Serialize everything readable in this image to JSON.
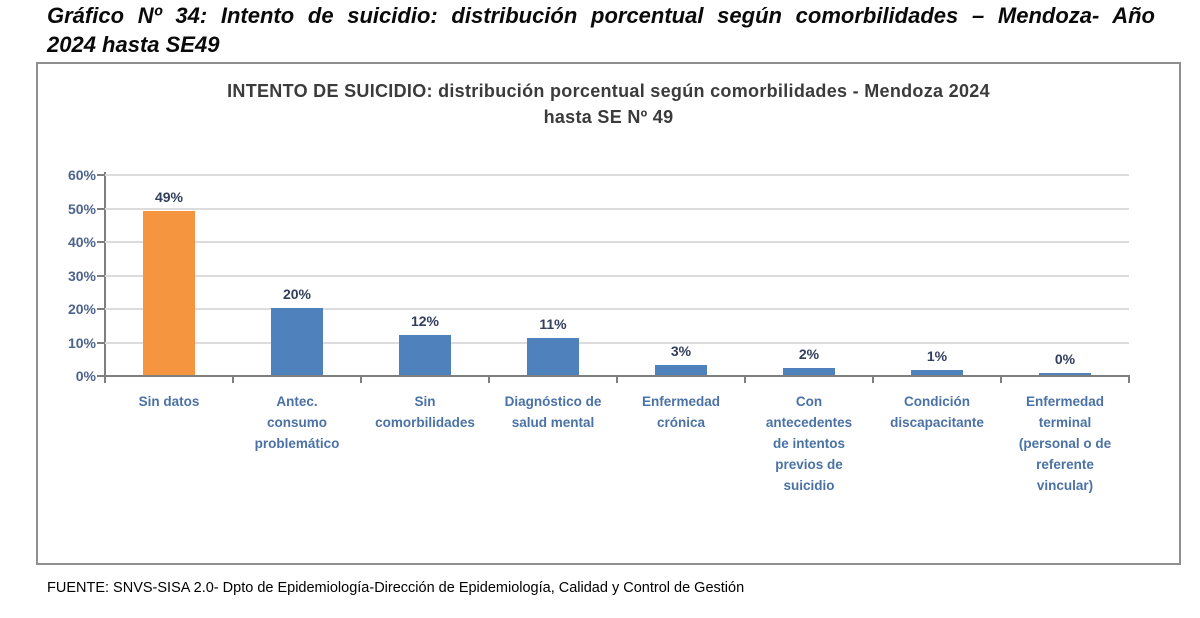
{
  "header": {
    "line1": "Gráfico Nº 34: Intento de suicidio: distribución porcentual según comorbilidades – Mendoza- Año",
    "line2": "2024 hasta SE49"
  },
  "chart_data": {
    "type": "bar",
    "title": "INTENTO DE SUICIDIO: distribución porcentual según comorbilidades - Mendoza 2024 hasta SE Nº 49",
    "title_line1": "INTENTO DE SUICIDIO: distribución porcentual según comorbilidades - Mendoza 2024",
    "title_line2": "hasta SE Nº 49",
    "categories": [
      "Sin datos",
      "Antec. consumo problemático",
      "Sin comorbilidades",
      "Diagnóstico de salud mental",
      "Enfermedad crónica",
      "Con antecedentes de intentos previos de suicidio",
      "Condición discapacitante",
      "Enfermedad terminal (personal o de referente vincular)"
    ],
    "x_tick_label_lines": [
      [
        "Sin datos"
      ],
      [
        "Antec.",
        "consumo",
        "problemático"
      ],
      [
        "Sin",
        "comorbilidades"
      ],
      [
        "Diagnóstico de",
        "salud mental"
      ],
      [
        "Enfermedad",
        "crónica"
      ],
      [
        "Con",
        "antecedentes",
        "de intentos",
        "previos de",
        "suicidio"
      ],
      [
        "Condición",
        "discapacitante"
      ],
      [
        "Enfermedad",
        "terminal",
        "(personal o de",
        "referente",
        "vincular)"
      ]
    ],
    "values": [
      49,
      20,
      12,
      11,
      3,
      2,
      1,
      0
    ],
    "value_labels": [
      "49%",
      "20%",
      "12%",
      "11%",
      "3%",
      "2%",
      "1%",
      "0%"
    ],
    "xlabel": "",
    "ylabel": "",
    "ylim": [
      0,
      60
    ],
    "yticks": [
      0,
      10,
      20,
      30,
      40,
      50,
      60
    ],
    "ytick_labels": [
      "0%",
      "10%",
      "20%",
      "30%",
      "40%",
      "50%",
      "60%"
    ],
    "grid": "horizontal",
    "legend": "none",
    "colors": {
      "highlight_index": 0,
      "highlight_bar": "#F5953F",
      "default_bar": "#4F81BD",
      "gridline": "#dcdcdc",
      "axis": "#7f7f7f",
      "value_label": "#313e5c",
      "tick_label": "#4d648c",
      "category_label": "#4a72a6"
    }
  },
  "footer": {
    "source": "FUENTE: SNVS-SISA 2.0- Dpto de Epidemiología-Dirección de Epidemiología, Calidad y Control de Gestión"
  }
}
